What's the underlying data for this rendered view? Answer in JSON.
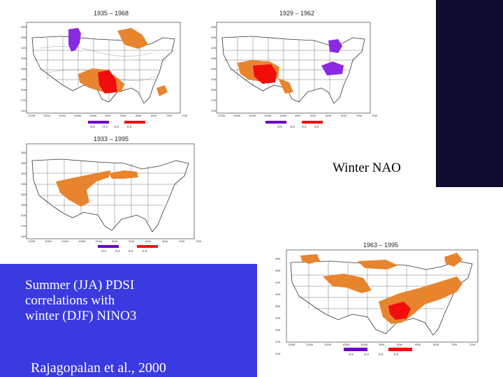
{
  "slide": {
    "label_nao": "Winter NAO",
    "caption_lines": [
      "Summer (JJA) PDSI",
      "correlations with",
      "winter (DJF) NINO3"
    ],
    "citation": "Rajagopalan et al., 2000"
  },
  "colors": {
    "orange": "#e8842e",
    "red": "#f20d0d",
    "purple": "#8a2be2",
    "violet": "#6a00c8"
  },
  "maps": [
    {
      "id": "map-1935-1968",
      "title": "1935 – 1968",
      "lat_ticks": [
        "48N",
        "45N",
        "42N",
        "39N",
        "36N",
        "33N",
        "30N",
        "27N",
        "24N"
      ],
      "lon_ticks": [
        "120W",
        "115W",
        "110W",
        "105W",
        "100W",
        "95W",
        "90W",
        "85W",
        "80W",
        "75W",
        "70W"
      ],
      "colorbar_labels": [
        "-0.5",
        "-0.3",
        "0.2",
        "0.5"
      ]
    },
    {
      "id": "map-1929-1962",
      "title": "1929 – 1962",
      "lat_ticks": [
        "48N",
        "45N",
        "42N",
        "39N",
        "36N",
        "33N",
        "30N",
        "27N",
        "24N"
      ],
      "lon_ticks": [
        "120W",
        "115W",
        "110W",
        "105W",
        "100W",
        "95W",
        "90W",
        "85W",
        "80W",
        "75W",
        "70W"
      ],
      "colorbar_labels": [
        "-0.5",
        "-0.3",
        "0.2",
        "0.5"
      ]
    },
    {
      "id": "map-1933-1995",
      "title": "1933 – 1995",
      "lat_ticks": [
        "48N",
        "45N",
        "42N",
        "39N",
        "36N",
        "33N",
        "30N",
        "27N",
        "24N"
      ],
      "lon_ticks": [
        "120W",
        "115W",
        "110W",
        "105W",
        "100W",
        "95W",
        "90W",
        "85W",
        "80W",
        "75W",
        "70W"
      ],
      "colorbar_labels": [
        "-0.3",
        "-0.2",
        "0.2",
        "0.3"
      ]
    },
    {
      "id": "map-1963-1995",
      "title": "1963 – 1995",
      "lat_ticks": [
        "48N",
        "45N",
        "42N",
        "39N",
        "36N",
        "33N",
        "30N",
        "27N",
        "24N"
      ],
      "lon_ticks": [
        "120W",
        "115W",
        "110W",
        "105W",
        "100W",
        "95W",
        "90W",
        "85W",
        "80W",
        "75W",
        "70W"
      ],
      "colorbar_labels": [
        "-0.4",
        "-0.3",
        "0.3",
        "0.4"
      ]
    }
  ]
}
